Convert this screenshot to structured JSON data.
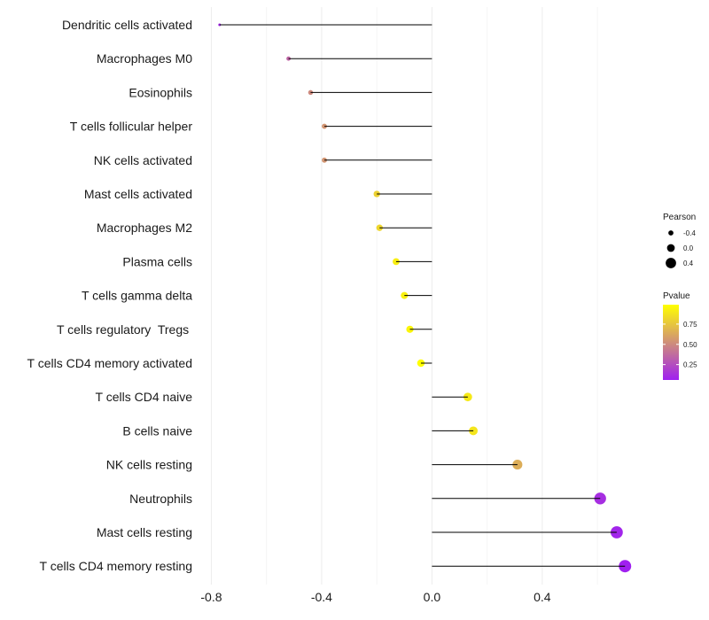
{
  "chart_data": {
    "type": "lollipop",
    "title": "",
    "xlabel": "",
    "ylabel": "",
    "xlim": [
      -0.84,
      0.77
    ],
    "x_ticks": [
      -0.8,
      -0.4,
      0.0,
      0.4
    ],
    "x_tick_labels": [
      "-0.8",
      "-0.4",
      "0.0",
      "0.4"
    ],
    "categories": [
      "Dendritic cells activated",
      "Macrophages M0",
      "Eosinophils",
      "T cells follicular helper",
      "NK cells activated",
      "Mast cells activated",
      "Macrophages M2",
      "Plasma cells",
      "T cells gamma delta",
      "T cells regulatory  Tregs ",
      "T cells CD4 memory activated",
      "T cells CD4 naive",
      "B cells naive",
      "NK cells resting",
      "Neutrophils",
      "Mast cells resting",
      "T cells CD4 memory resting"
    ],
    "pearson": [
      -0.77,
      -0.52,
      -0.44,
      -0.39,
      -0.39,
      -0.2,
      -0.19,
      -0.13,
      -0.1,
      -0.08,
      -0.04,
      0.13,
      0.15,
      0.31,
      0.61,
      0.67,
      0.7
    ],
    "pvalue": [
      0.1,
      0.35,
      0.5,
      0.55,
      0.55,
      0.8,
      0.82,
      0.92,
      0.93,
      0.95,
      0.99,
      0.9,
      0.88,
      0.65,
      0.12,
      0.08,
      0.06
    ],
    "legend": {
      "size_title": "Pearson",
      "size_values": [
        -0.4,
        0.0,
        0.4
      ],
      "size_labels": [
        "-0.4",
        "0.0",
        "0.4"
      ],
      "color_title": "Pvalue",
      "color_ticks": [
        0.25,
        0.5,
        0.75
      ],
      "color_tick_labels": [
        "0.25",
        "0.50",
        "0.75"
      ],
      "color_range": [
        0.06,
        0.99
      ],
      "color_low": "#a020f0",
      "color_high": "#ffff00",
      "placement": "right"
    },
    "grid": true
  }
}
